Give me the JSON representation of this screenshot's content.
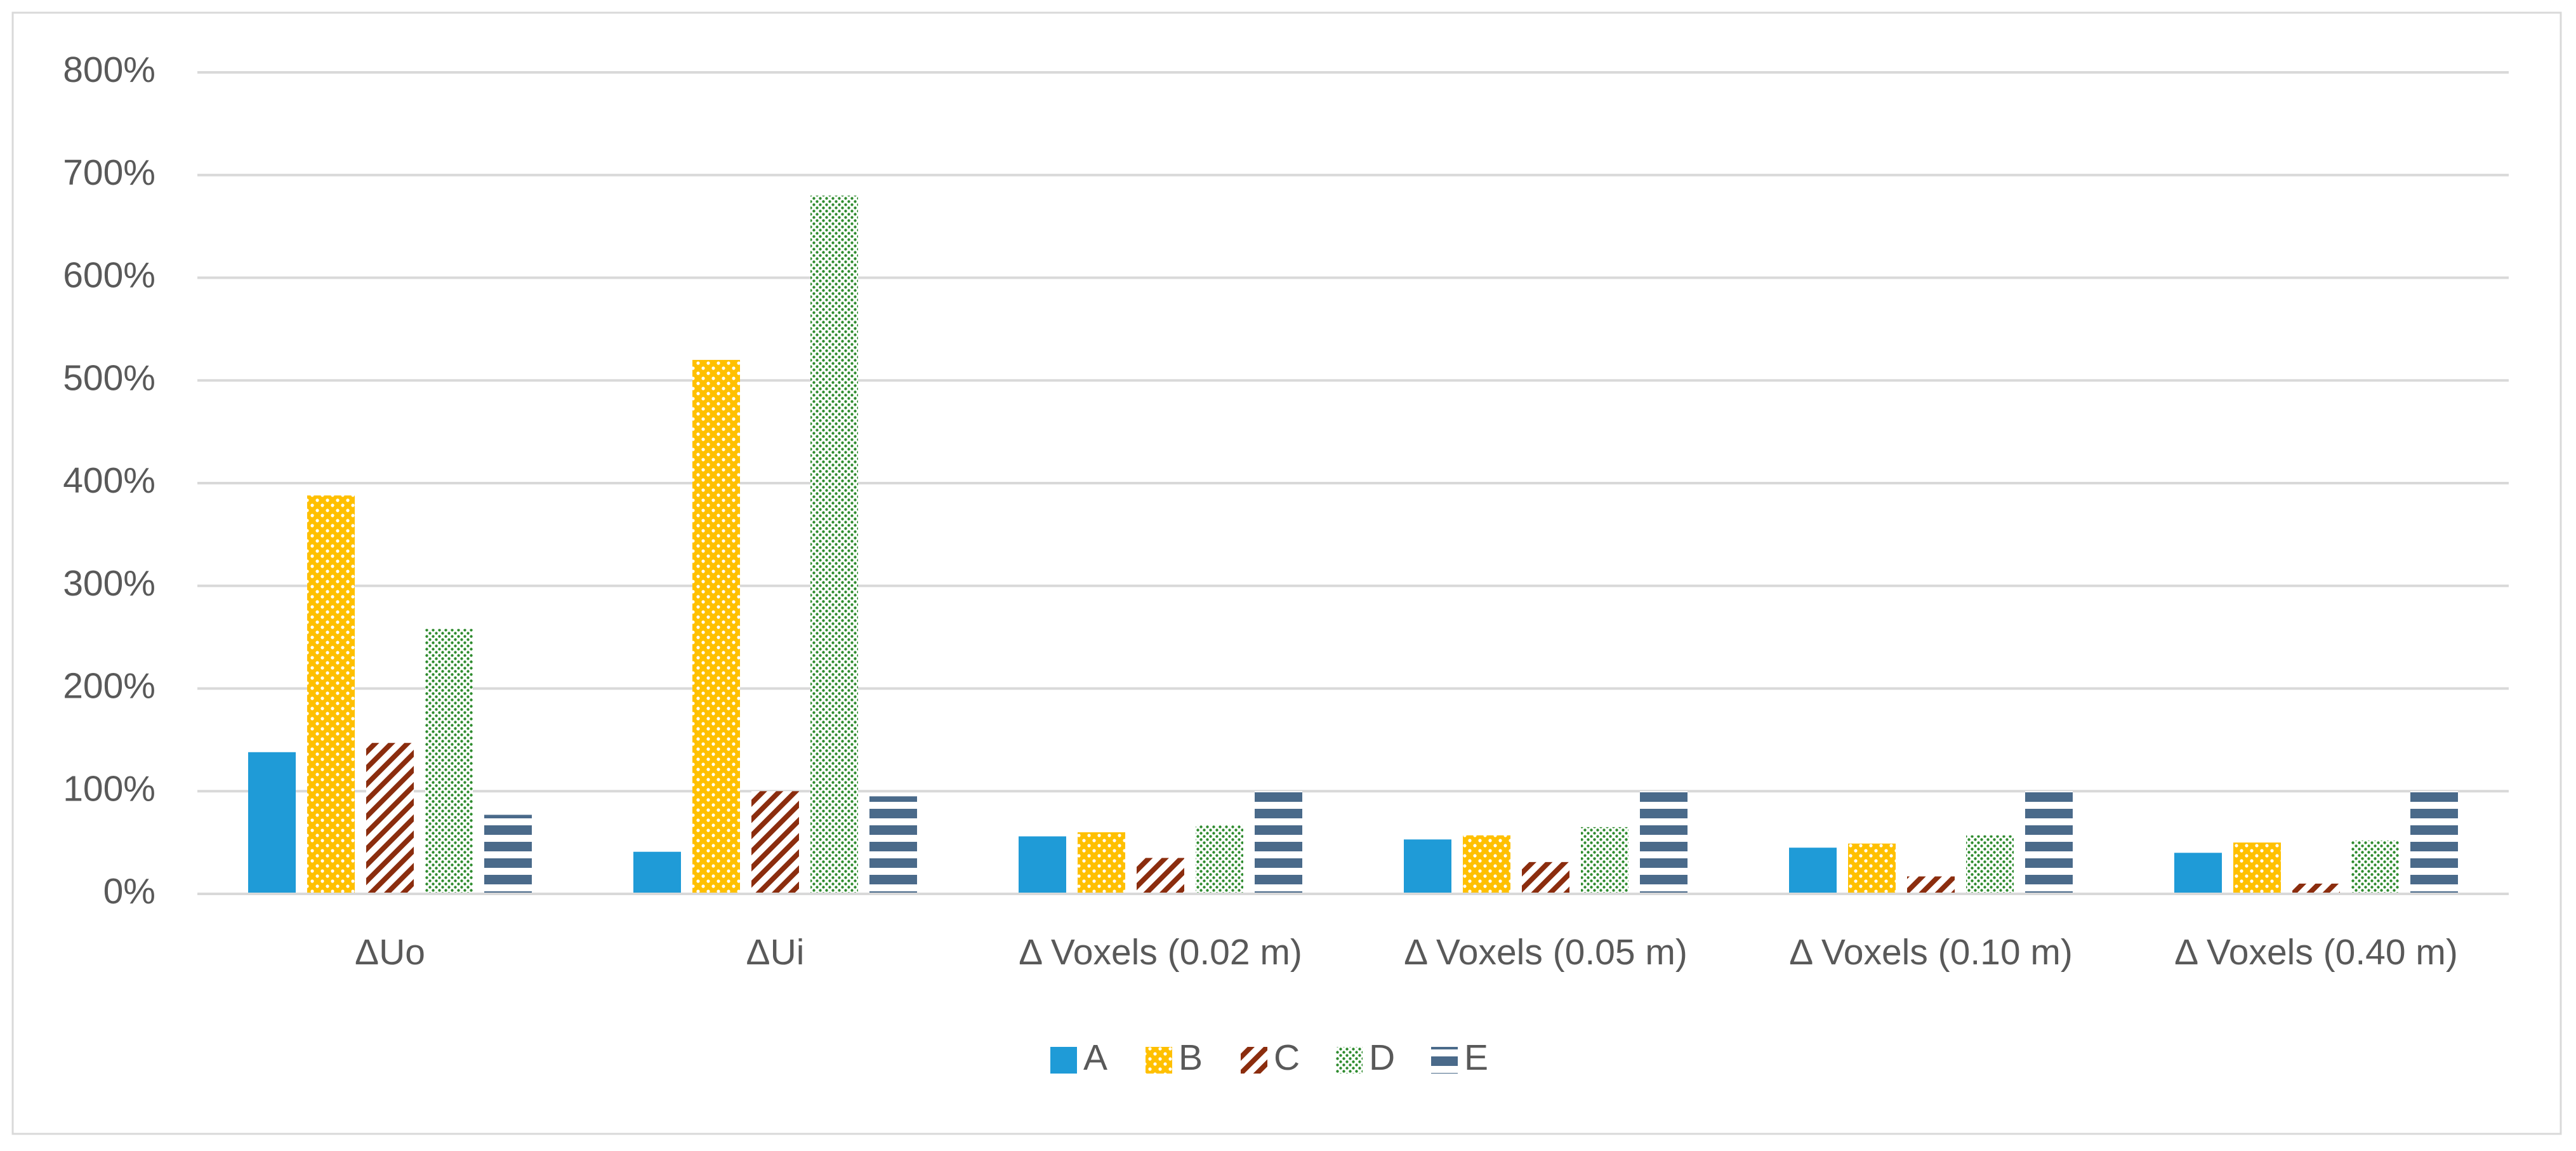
{
  "chart_data": {
    "type": "bar",
    "categories": [
      "ΔUo",
      "ΔUi",
      "Δ Voxels (0.02 m)",
      "Δ Voxels (0.05 m)",
      "Δ Voxels (0.10 m)",
      "Δ Voxels (0.40 m)"
    ],
    "series": [
      {
        "name": "A",
        "color": "#1f9bd7",
        "pattern": "solid",
        "values": [
          138,
          41,
          56,
          53,
          45,
          40
        ]
      },
      {
        "name": "B",
        "color": "#ffc000",
        "pattern": "light-dots",
        "values": [
          388,
          520,
          60,
          57,
          49,
          50
        ]
      },
      {
        "name": "C",
        "color": "#8b2d0e",
        "pattern": "diagonal",
        "values": [
          147,
          100,
          35,
          31,
          17,
          10
        ]
      },
      {
        "name": "D",
        "color": "#2e8b2e",
        "pattern": "dots",
        "values": [
          258,
          680,
          67,
          65,
          57,
          52
        ]
      },
      {
        "name": "E",
        "color": "#4a6a8a",
        "pattern": "horizontal",
        "values": [
          77,
          95,
          100,
          100,
          100,
          100
        ]
      }
    ],
    "ylim": [
      0,
      800
    ],
    "yticks": [
      {
        "value": 0,
        "label": "0%"
      },
      {
        "value": 100,
        "label": "100%"
      },
      {
        "value": 200,
        "label": "200%"
      },
      {
        "value": 300,
        "label": "300%"
      },
      {
        "value": 400,
        "label": "400%"
      },
      {
        "value": 500,
        "label": "500%"
      },
      {
        "value": 600,
        "label": "600%"
      },
      {
        "value": 700,
        "label": "700%"
      },
      {
        "value": 800,
        "label": "800%"
      }
    ],
    "grid": true,
    "legend": "bottom"
  }
}
